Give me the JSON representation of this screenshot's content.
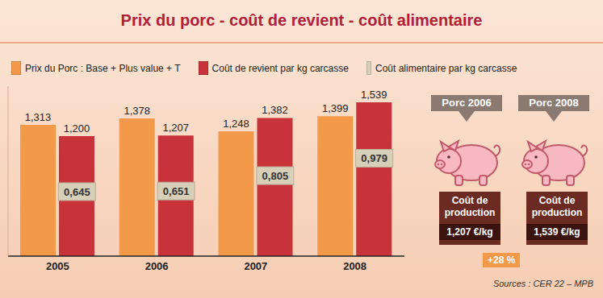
{
  "chart_data": {
    "type": "bar",
    "title": "Prix du porc - coût de revient - coût alimentaire",
    "categories": [
      "2005",
      "2006",
      "2007",
      "2008"
    ],
    "series": [
      {
        "name": "Prix du Porc : Base + Plus value + T",
        "color": "#f39a4a",
        "values": [
          1.313,
          1.378,
          1.248,
          1.399
        ],
        "value_labels": [
          "1,313",
          "1,378",
          "1,248",
          "1,399"
        ]
      },
      {
        "name": "Coût de revient par kg carcasse",
        "color": "#c8323a",
        "values": [
          1.2,
          1.207,
          1.382,
          1.539
        ],
        "value_labels": [
          "1,200",
          "1,207",
          "1,382",
          "1,539"
        ]
      },
      {
        "name": "Coût alimentaire par kg carcasse",
        "color": "#d8cfb8",
        "type": "label",
        "values": [
          0.645,
          0.651,
          0.805,
          0.979
        ],
        "value_labels": [
          "0,645",
          "0,651",
          "0,805",
          "0,979"
        ]
      }
    ],
    "ylim": [
      0,
      1.7
    ],
    "yticks": [],
    "tick_labels": "x",
    "data_labels": true,
    "grid": false,
    "legend": "top",
    "annotations": {
      "pigs": [
        {
          "label": "Porc 2006",
          "caption": "Coût de production",
          "cost": "1,207 €/kg"
        },
        {
          "label": "Porc 2008",
          "caption": "Coût de production",
          "cost": "1,539 €/kg"
        }
      ],
      "change": "+28 %",
      "source": "Sources : CER 22 – MPB"
    }
  }
}
